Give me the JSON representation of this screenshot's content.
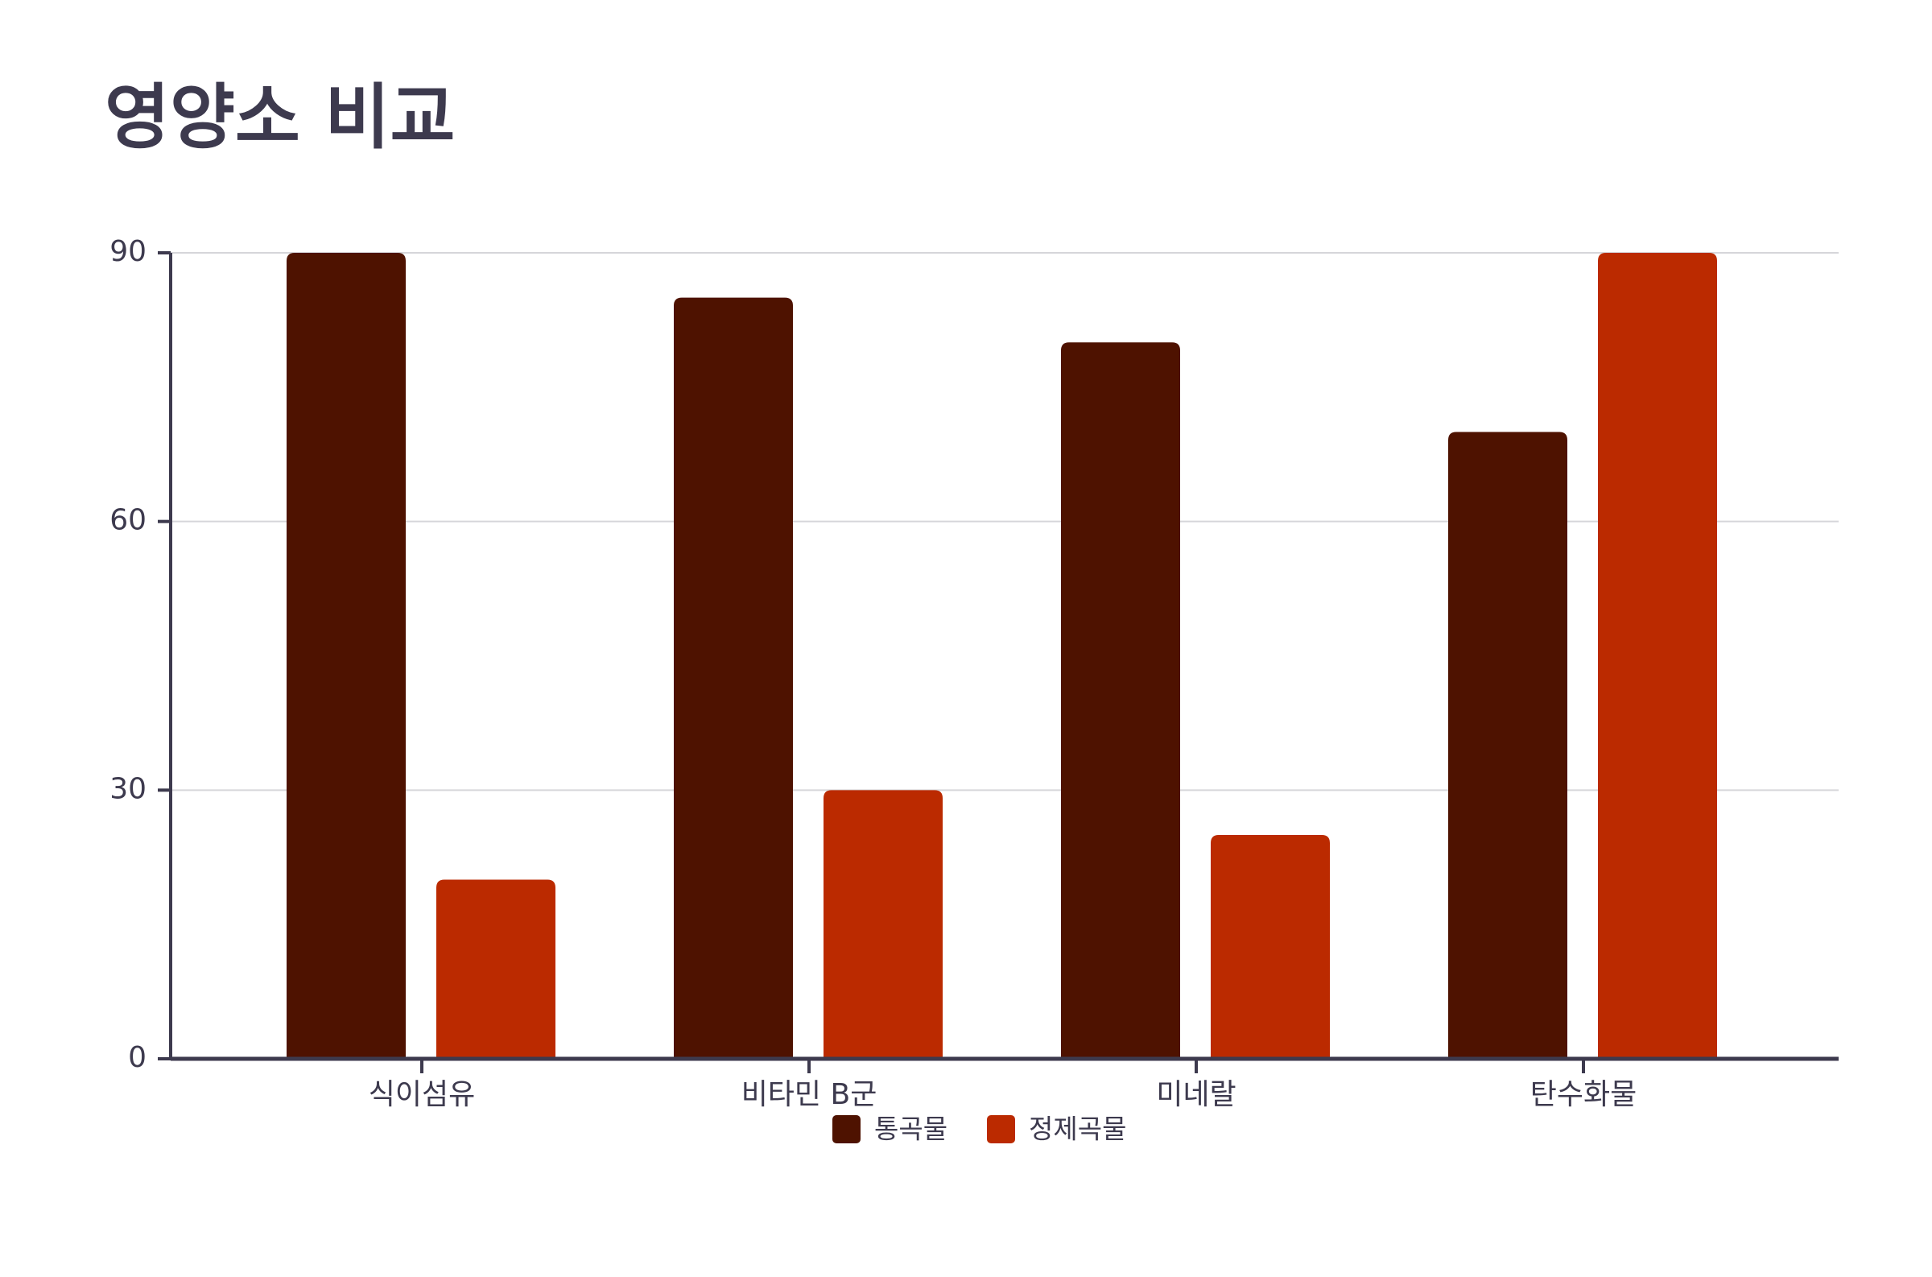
{
  "chart_data": {
    "type": "bar",
    "title": "영양소 비교",
    "categories": [
      "식이섬유",
      "비타민 B군",
      "미네랄",
      "탄수화물"
    ],
    "series": [
      {
        "name": "통곡물",
        "color": "#4e1200",
        "values": [
          90,
          85,
          80,
          70
        ]
      },
      {
        "name": "정제곡물",
        "color": "#bb2a00",
        "values": [
          20,
          30,
          25,
          90
        ]
      }
    ],
    "ylim": [
      0,
      90
    ],
    "yticks": [
      0,
      30,
      60,
      90
    ],
    "grid": true,
    "legend": "bottom"
  }
}
